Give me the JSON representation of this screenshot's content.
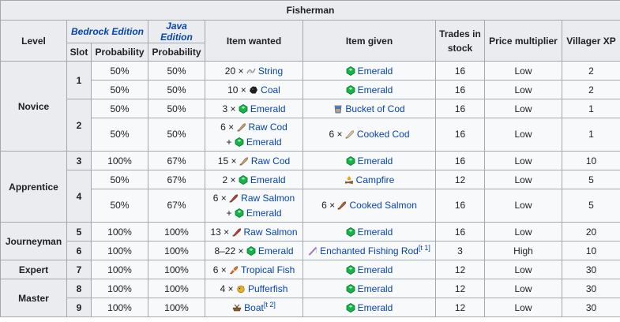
{
  "title": "Fisherman",
  "headers": {
    "level": "Level",
    "bedrock": "Bedrock Edition",
    "java": "Java Edition",
    "slot": "Slot",
    "probability": "Probability",
    "item_wanted": "Item wanted",
    "item_given": "Item given",
    "trades_in_stock_1": "Trades in",
    "trades_in_stock_2": "stock",
    "price_multiplier": "Price multiplier",
    "villager_xp": "Villager XP"
  },
  "levels": [
    "Novice",
    "Apprentice",
    "Journeyman",
    "Expert",
    "Master"
  ],
  "rows": [
    {
      "level": "Novice",
      "slot": "1",
      "bedrock": "50%",
      "java": "50%",
      "wanted": [
        {
          "qty": "20 ×",
          "icon": "string-icon",
          "name": "String"
        }
      ],
      "given": {
        "qty": "",
        "icon": "emerald-icon",
        "name": "Emerald"
      },
      "stock": "16",
      "price": "Low",
      "xp": "2"
    },
    {
      "level": "Novice",
      "slot": "1",
      "bedrock": "50%",
      "java": "50%",
      "wanted": [
        {
          "qty": "10 ×",
          "icon": "coal-icon",
          "name": "Coal"
        }
      ],
      "given": {
        "qty": "",
        "icon": "emerald-icon",
        "name": "Emerald"
      },
      "stock": "16",
      "price": "Low",
      "xp": "2"
    },
    {
      "level": "Novice",
      "slot": "2",
      "bedrock": "50%",
      "java": "50%",
      "wanted": [
        {
          "qty": "3 ×",
          "icon": "emerald-icon",
          "name": "Emerald"
        }
      ],
      "given": {
        "qty": "",
        "icon": "bucket-of-cod-icon",
        "name": "Bucket of Cod"
      },
      "stock": "16",
      "price": "Low",
      "xp": "1"
    },
    {
      "level": "Novice",
      "slot": "2",
      "bedrock": "50%",
      "java": "50%",
      "wanted": [
        {
          "qty": "6 ×",
          "icon": "raw-cod-icon",
          "name": "Raw Cod"
        },
        {
          "qty": "+",
          "icon": "emerald-icon",
          "name": "Emerald"
        }
      ],
      "given": {
        "qty": "6 ×",
        "icon": "cooked-cod-icon",
        "name": "Cooked Cod"
      },
      "stock": "16",
      "price": "Low",
      "xp": "1"
    },
    {
      "level": "Apprentice",
      "slot": "3",
      "bedrock": "100%",
      "java": "67%",
      "wanted": [
        {
          "qty": "15 ×",
          "icon": "raw-cod-icon",
          "name": "Raw Cod"
        }
      ],
      "given": {
        "qty": "",
        "icon": "emerald-icon",
        "name": "Emerald"
      },
      "stock": "16",
      "price": "Low",
      "xp": "10"
    },
    {
      "level": "Apprentice",
      "slot": "4",
      "bedrock": "50%",
      "java": "67%",
      "wanted": [
        {
          "qty": "2 ×",
          "icon": "emerald-icon",
          "name": "Emerald"
        }
      ],
      "given": {
        "qty": "",
        "icon": "campfire-icon",
        "name": "Campfire"
      },
      "stock": "12",
      "price": "Low",
      "xp": "5"
    },
    {
      "level": "Apprentice",
      "slot": "4",
      "bedrock": "50%",
      "java": "67%",
      "wanted": [
        {
          "qty": "6 ×",
          "icon": "raw-salmon-icon",
          "name": "Raw Salmon"
        },
        {
          "qty": "+",
          "icon": "emerald-icon",
          "name": "Emerald"
        }
      ],
      "given": {
        "qty": "6 ×",
        "icon": "cooked-salmon-icon",
        "name": "Cooked Salmon"
      },
      "stock": "16",
      "price": "Low",
      "xp": "5"
    },
    {
      "level": "Journeyman",
      "slot": "5",
      "bedrock": "100%",
      "java": "100%",
      "wanted": [
        {
          "qty": "13 ×",
          "icon": "raw-salmon-icon",
          "name": "Raw Salmon"
        }
      ],
      "given": {
        "qty": "",
        "icon": "emerald-icon",
        "name": "Emerald"
      },
      "stock": "16",
      "price": "Low",
      "xp": "20"
    },
    {
      "level": "Journeyman",
      "slot": "6",
      "bedrock": "100%",
      "java": "100%",
      "wanted": [
        {
          "qty": "8–22 ×",
          "icon": "emerald-icon",
          "name": "Emerald"
        }
      ],
      "given": {
        "qty": "",
        "icon": "enchanted-fishing-rod-icon",
        "name": "Enchanted Fishing Rod",
        "note": "[t 1]"
      },
      "stock": "3",
      "price": "High",
      "xp": "10"
    },
    {
      "level": "Expert",
      "slot": "7",
      "bedrock": "100%",
      "java": "100%",
      "wanted": [
        {
          "qty": "6 ×",
          "icon": "tropical-fish-icon",
          "name": "Tropical Fish"
        }
      ],
      "given": {
        "qty": "",
        "icon": "emerald-icon",
        "name": "Emerald"
      },
      "stock": "12",
      "price": "Low",
      "xp": "30"
    },
    {
      "level": "Master",
      "slot": "8",
      "bedrock": "100%",
      "java": "100%",
      "wanted": [
        {
          "qty": "4 ×",
          "icon": "pufferfish-icon",
          "name": "Pufferfish"
        }
      ],
      "given": {
        "qty": "",
        "icon": "emerald-icon",
        "name": "Emerald"
      },
      "stock": "12",
      "price": "Low",
      "xp": "30"
    },
    {
      "level": "Master",
      "slot": "9",
      "bedrock": "100%",
      "java": "100%",
      "wanted": [
        {
          "qty": "",
          "icon": "boat-icon",
          "name": "Boat",
          "note": "[t 2]"
        }
      ],
      "given": {
        "qty": "",
        "icon": "emerald-icon",
        "name": "Emerald"
      },
      "stock": "12",
      "price": "Low",
      "xp": "30"
    }
  ],
  "colors": {
    "header_bg": "#eaecf0",
    "cell_bg": "#f8f9fa",
    "border": "#a2a9b1",
    "link": "#0645ad",
    "emerald": "#17b24a"
  }
}
